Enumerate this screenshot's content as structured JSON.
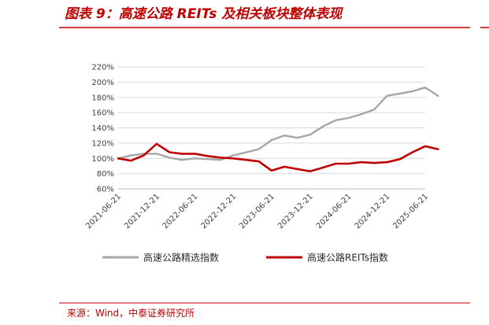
{
  "figure": {
    "title": "图表 9：高速公路 REITs 及相关板块整体表现",
    "source": "来源：Wind，中泰证券研究所"
  },
  "colors": {
    "accent": "#c00000",
    "series_gray": "#a6a6a6",
    "series_red": "#c00000",
    "grid": "#d9d9d9",
    "text": "#404040"
  },
  "chart_data": {
    "type": "line",
    "title": "",
    "xlabel": "",
    "ylabel": "",
    "grid": true,
    "legend_position": "bottom",
    "x_ticks": [
      "2021-06-21",
      "2021-12-21",
      "2022-06-21",
      "2022-12-21",
      "2023-06-21",
      "2023-12-21",
      "2024-06-21",
      "2024-12-21",
      "2025-06-21"
    ],
    "y_ticks": [
      "60%",
      "80%",
      "100%",
      "120%",
      "140%",
      "160%",
      "180%",
      "200%",
      "220%"
    ],
    "ylim": [
      60,
      220
    ],
    "x": [
      "2021-06-21",
      "2021-08-21",
      "2021-10-21",
      "2021-12-21",
      "2022-02-21",
      "2022-04-21",
      "2022-06-21",
      "2022-08-21",
      "2022-10-21",
      "2022-12-21",
      "2023-02-21",
      "2023-04-21",
      "2023-06-21",
      "2023-08-21",
      "2023-10-21",
      "2023-12-21",
      "2024-02-21",
      "2024-04-21",
      "2024-06-21",
      "2024-08-21",
      "2024-10-21",
      "2024-12-21",
      "2025-02-21",
      "2025-04-21",
      "2025-06-21",
      "2025-08-21"
    ],
    "series": [
      {
        "name": "高速公路精选指数",
        "color": "#a6a6a6",
        "values": [
          100,
          104,
          106,
          106,
          101,
          98,
          100,
          99,
          98,
          104,
          108,
          112,
          124,
          130,
          127,
          131,
          142,
          150,
          153,
          158,
          164,
          182,
          185,
          188,
          193,
          182
        ]
      },
      {
        "name": "高速公路REITs指数",
        "color": "#c00000",
        "values": [
          100,
          97,
          104,
          119,
          108,
          106,
          106,
          103,
          101,
          100,
          98,
          96,
          84,
          89,
          86,
          83,
          88,
          93,
          93,
          95,
          94,
          95,
          99,
          108,
          116,
          112
        ]
      }
    ]
  }
}
